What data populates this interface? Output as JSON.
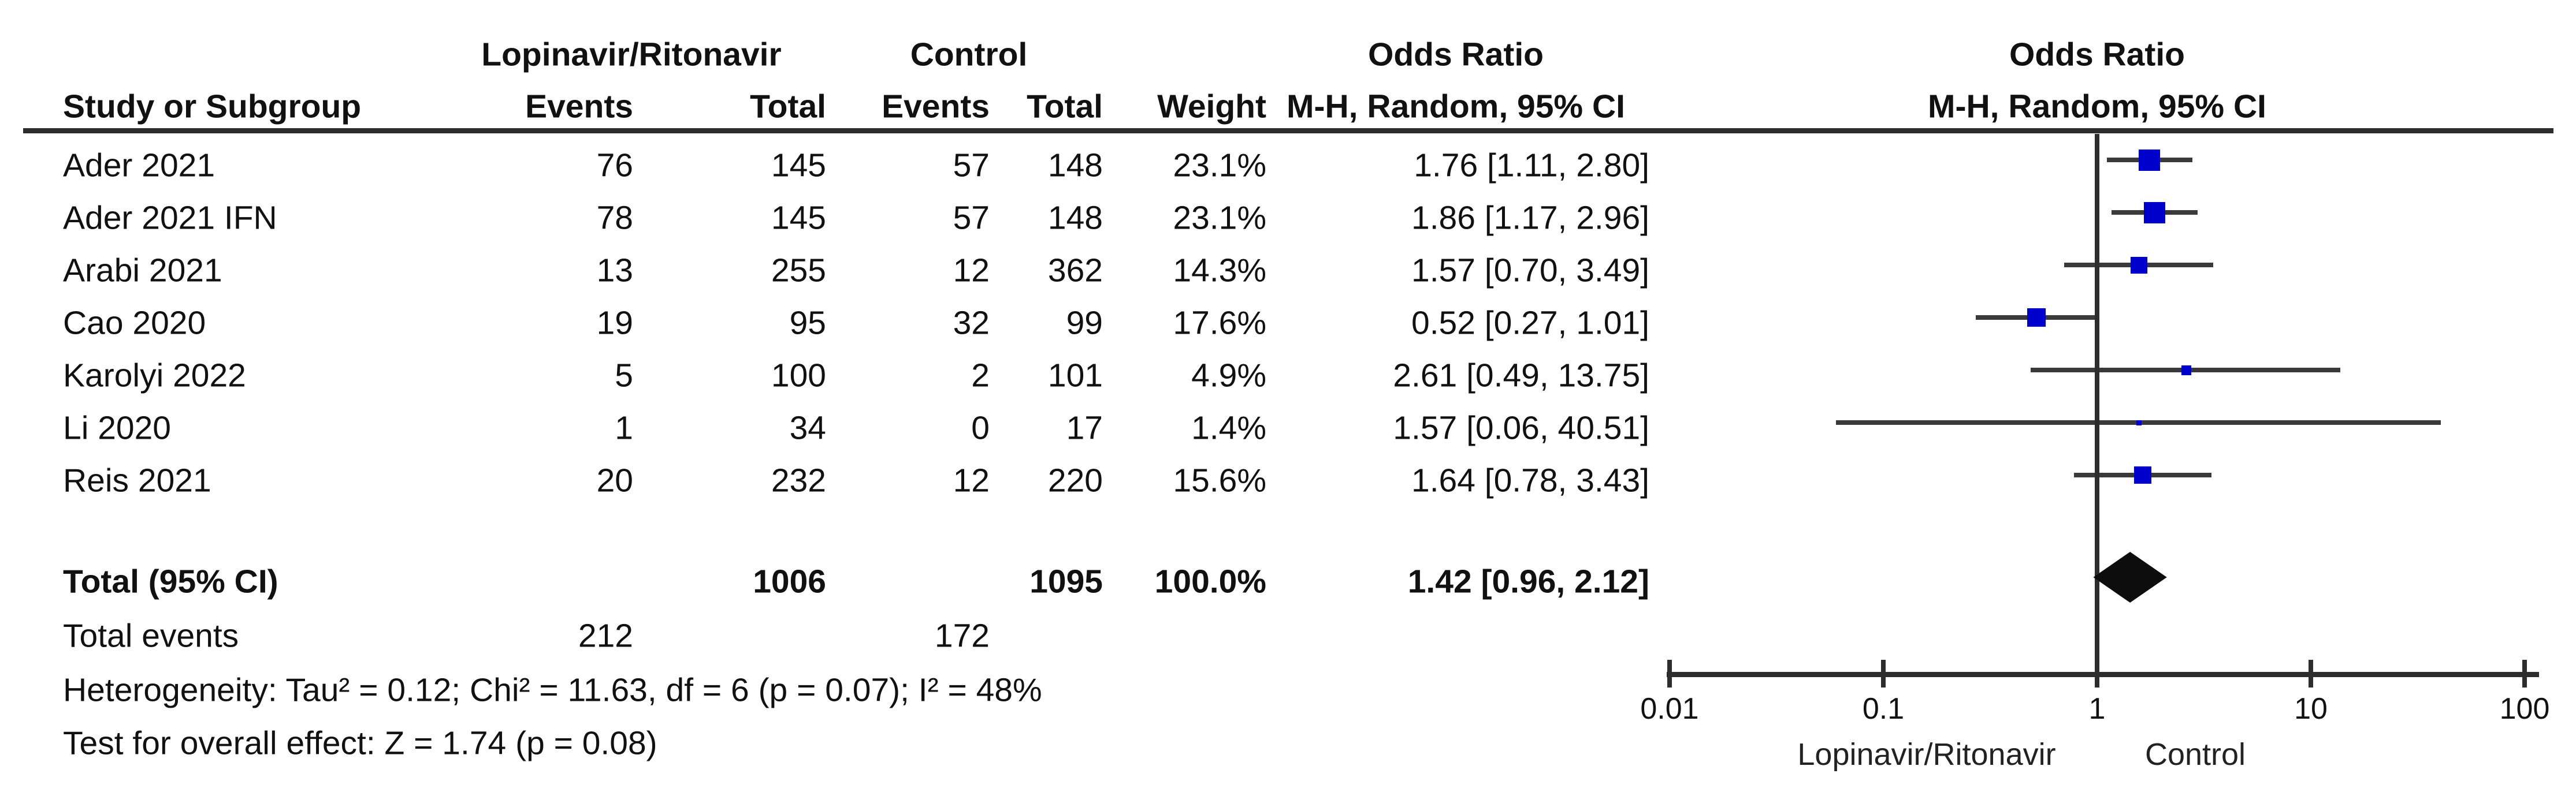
{
  "header": {
    "group1": "Lopinavir/Ritonavir",
    "group2": "Control",
    "col_study": "Study or Subgroup",
    "col_events": "Events",
    "col_total": "Total",
    "col_weight": "Weight",
    "or_title": "Odds Ratio",
    "or_method": "M-H, Random, 95% CI",
    "plot_title": "Odds Ratio",
    "plot_method": "M-H, Random, 95% CI"
  },
  "chart_data": {
    "type": "scatter",
    "variant": "forest-plot-meta-analysis",
    "effect_measure": "Odds Ratio",
    "method": "M-H, Random, 95% CI",
    "x_scale": "log",
    "xlim": [
      0.01,
      100
    ],
    "x_ticks": [
      "0.01",
      "0.1",
      "1",
      "10",
      "100"
    ],
    "axis_left_label": "Lopinavir/Ritonavir",
    "axis_right_label": "Control",
    "grid": false,
    "studies": [
      {
        "name": "Ader 2021",
        "events1": "76",
        "total1": "145",
        "events2": "57",
        "total2": "148",
        "weight": "23.1%",
        "weight_value": 23.1,
        "or": 1.76,
        "ci_low": 1.11,
        "ci_high": 2.8,
        "or_text": "1.76 [1.11, 2.80]"
      },
      {
        "name": "Ader 2021 IFN",
        "events1": "78",
        "total1": "145",
        "events2": "57",
        "total2": "148",
        "weight": "23.1%",
        "weight_value": 23.1,
        "or": 1.86,
        "ci_low": 1.17,
        "ci_high": 2.96,
        "or_text": "1.86 [1.17, 2.96]"
      },
      {
        "name": "Arabi 2021",
        "events1": "13",
        "total1": "255",
        "events2": "12",
        "total2": "362",
        "weight": "14.3%",
        "weight_value": 14.3,
        "or": 1.57,
        "ci_low": 0.7,
        "ci_high": 3.49,
        "or_text": "1.57 [0.70, 3.49]"
      },
      {
        "name": "Cao 2020",
        "events1": "19",
        "total1": "95",
        "events2": "32",
        "total2": "99",
        "weight": "17.6%",
        "weight_value": 17.6,
        "or": 0.52,
        "ci_low": 0.27,
        "ci_high": 1.01,
        "or_text": "0.52 [0.27, 1.01]"
      },
      {
        "name": "Karolyi 2022",
        "events1": "5",
        "total1": "100",
        "events2": "2",
        "total2": "101",
        "weight": "4.9%",
        "weight_value": 4.9,
        "or": 2.61,
        "ci_low": 0.49,
        "ci_high": 13.75,
        "or_text": "2.61 [0.49, 13.75]"
      },
      {
        "name": "Li 2020",
        "events1": "1",
        "total1": "34",
        "events2": "0",
        "total2": "17",
        "weight": "1.4%",
        "weight_value": 1.4,
        "or": 1.57,
        "ci_low": 0.06,
        "ci_high": 40.51,
        "or_text": "1.57 [0.06, 40.51]"
      },
      {
        "name": "Reis 2021",
        "events1": "20",
        "total1": "232",
        "events2": "12",
        "total2": "220",
        "weight": "15.6%",
        "weight_value": 15.6,
        "or": 1.64,
        "ci_low": 0.78,
        "ci_high": 3.43,
        "or_text": "1.64 [0.78, 3.43]"
      }
    ],
    "total": {
      "label": "Total (95% CI)",
      "total1": "1006",
      "total2": "1095",
      "weight": "100.0%",
      "or": 1.42,
      "ci_low": 0.96,
      "ci_high": 2.12,
      "or_text": "1.42 [0.96, 2.12]"
    },
    "total_events": {
      "label": "Total events",
      "events1": "212",
      "events2": "172"
    },
    "heterogeneity": "Heterogeneity: Tau² = 0.12; Chi² = 11.63, df = 6 (p = 0.07); I² = 48%",
    "overall_effect": "Test for overall effect: Z = 1.74 (p = 0.08)"
  },
  "colors": {
    "marker_blue": "#0000cc",
    "ci_line": "#3a3a3a",
    "axis": "#2d2d2d",
    "text": "#111111",
    "background": "#ffffff"
  }
}
